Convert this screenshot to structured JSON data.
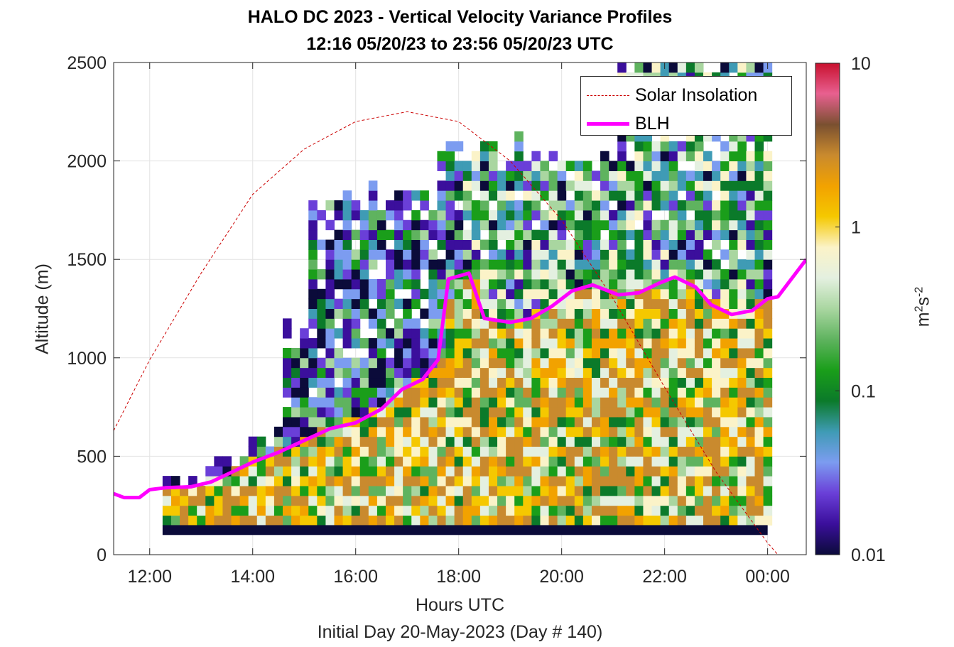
{
  "header": {
    "title_line1": "HALO DC 2023 - Vertical Velocity Variance Profiles",
    "title_line2": "12:16 05/20/23 to 23:56 05/20/23  UTC"
  },
  "axes": {
    "xlabel": "Hours UTC",
    "subtitle": "Initial Day 20-May-2023 (Day # 140)",
    "ylabel": "Altitude (m)",
    "colorbar_label": "m2s-2"
  },
  "legend": {
    "solar_label": "Solar Insolation",
    "blh_label": "BLH",
    "placement": "top-right"
  },
  "colors": {
    "solar": "#cc0000",
    "blh": "#ff00ff",
    "colormap": [
      "#0b0b3a",
      "#3b0f9c",
      "#6a3fd8",
      "#7c9cf0",
      "#3f9bb5",
      "#0b7a2a",
      "#1a9e1a",
      "#5fb35f",
      "#a9d6a0",
      "#e4f0e0",
      "#fbf3c8",
      "#f5c800",
      "#f2a200",
      "#c98a2e",
      "#7a5030",
      "#e86090",
      "#c8102e"
    ]
  },
  "chart_data": {
    "type": "heatmap",
    "title": "HALO DC 2023 - Vertical Velocity Variance Profiles",
    "xlabel": "Hours UTC",
    "ylabel": "Altitude (m)",
    "xlim_hours": [
      11.3,
      24.75
    ],
    "ylim": [
      0,
      2500
    ],
    "x_ticks": [
      "12:00",
      "14:00",
      "16:00",
      "18:00",
      "20:00",
      "22:00",
      "00:00"
    ],
    "y_ticks": [
      0,
      500,
      1000,
      1500,
      2000,
      2500
    ],
    "colorbar": {
      "scale": "log",
      "range": [
        0.01,
        10
      ],
      "ticks": [
        "0.01",
        "0.1",
        "1",
        "10"
      ],
      "label": "m2s-2"
    },
    "grid": true,
    "legend_placement": "top-right",
    "series": [
      {
        "name": "Solar Insolation",
        "style": "dashed",
        "hours": [
          11.3,
          12,
          13,
          14,
          15,
          16,
          17,
          18,
          19,
          20,
          21,
          22,
          23,
          24,
          24.2
        ],
        "altitude_m": [
          630,
          990,
          1430,
          1830,
          2060,
          2200,
          2250,
          2200,
          2000,
          1700,
          1300,
          850,
          420,
          60,
          0
        ]
      },
      {
        "name": "BLH",
        "style": "solid",
        "hours": [
          11.3,
          11.5,
          11.8,
          12.0,
          12.3,
          12.8,
          13.2,
          13.6,
          14.0,
          14.5,
          15.0,
          15.5,
          16.0,
          16.5,
          16.9,
          17.3,
          17.6,
          17.8,
          18.2,
          18.5,
          19.0,
          19.4,
          19.8,
          20.2,
          20.6,
          21.1,
          21.5,
          21.9,
          22.2,
          22.6,
          22.9,
          23.3,
          23.7,
          24.0,
          24.2,
          24.75
        ],
        "altitude_m": [
          310,
          290,
          290,
          330,
          340,
          345,
          370,
          420,
          470,
          520,
          580,
          640,
          670,
          740,
          840,
          890,
          990,
          1400,
          1430,
          1200,
          1180,
          1200,
          1260,
          1340,
          1370,
          1320,
          1330,
          1380,
          1410,
          1360,
          1270,
          1220,
          1240,
          1300,
          1310,
          1500
        ]
      }
    ],
    "heatmap_extent": {
      "hours": [
        12.25,
        24.0
      ],
      "altitude_m": [
        100,
        2500
      ]
    }
  }
}
